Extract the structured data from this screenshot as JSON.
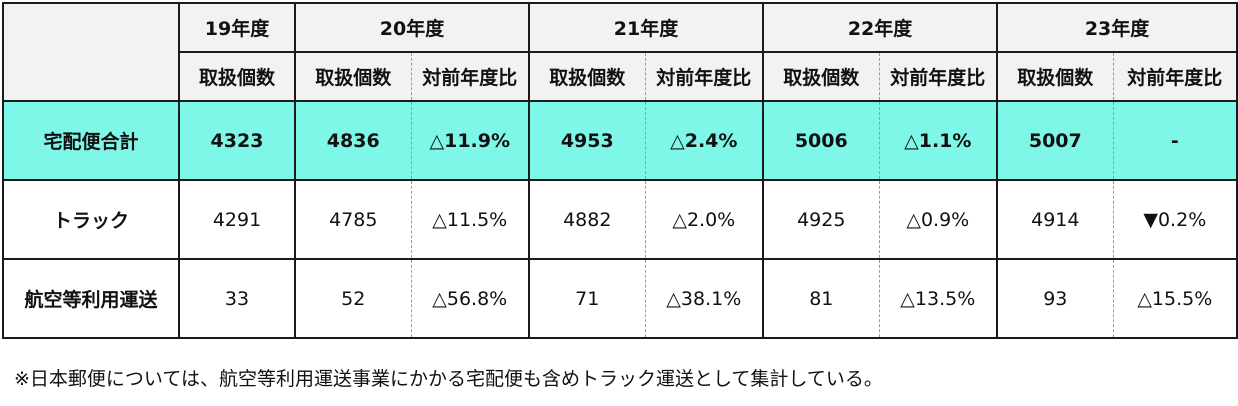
{
  "header": {
    "years": [
      "19年度",
      "20年度",
      "21年度",
      "22年度",
      "23年度"
    ],
    "count_label": "取扱個数",
    "ratio_label": "対前年度比"
  },
  "rows": [
    {
      "label": "宅配便合計",
      "values": [
        "4323",
        "4836",
        "△11.9%",
        "4953",
        "△2.4%",
        "5006",
        "△1.1%",
        "5007",
        "-"
      ]
    },
    {
      "label": "トラック",
      "values": [
        "4291",
        "4785",
        "△11.5%",
        "4882",
        "△2.0%",
        "4925",
        "△0.9%",
        "4914",
        "▼0.2%"
      ]
    },
    {
      "label": "航空等利用運送",
      "values": [
        "33",
        "52",
        "△56.8%",
        "71",
        "△38.1%",
        "81",
        "△13.5%",
        "93",
        "△15.5%"
      ]
    }
  ],
  "note": "※日本郵便については、航空等利用運送事業にかかる宅配便も含めトラック運送として集計している。",
  "colors": {
    "highlight_row": "#7ff7e8",
    "header_bg": "#f2f2f2",
    "border": "#1a1a1a"
  }
}
